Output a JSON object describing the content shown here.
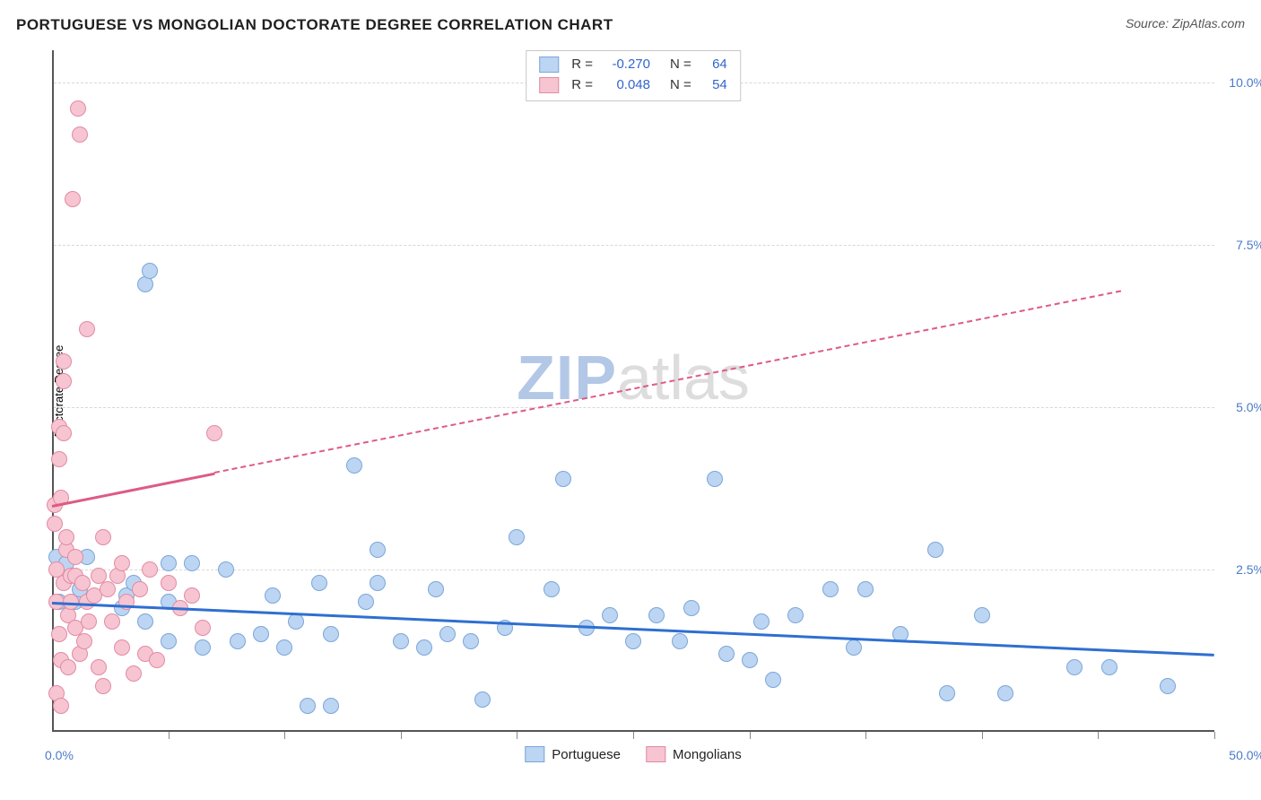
{
  "title": "PORTUGUESE VS MONGOLIAN DOCTORATE DEGREE CORRELATION CHART",
  "source": "Source: ZipAtlas.com",
  "y_axis_label": "Doctorate Degree",
  "watermark": {
    "left": "ZIP",
    "right": "atlas"
  },
  "chart": {
    "type": "scatter",
    "xlim": [
      0,
      50
    ],
    "ylim": [
      0,
      10.5
    ],
    "x_origin_label": "0.0%",
    "x_end_label": "50.0%",
    "x_ticks": [
      5,
      10,
      15,
      20,
      25,
      30,
      35,
      40,
      45,
      50
    ],
    "y_ticks": [
      {
        "v": 2.5,
        "label": "2.5%"
      },
      {
        "v": 5.0,
        "label": "5.0%"
      },
      {
        "v": 7.5,
        "label": "7.5%"
      },
      {
        "v": 10.0,
        "label": "10.0%"
      }
    ],
    "grid_color": "#d8d8d8",
    "background_color": "#ffffff",
    "point_radius": 9,
    "series": [
      {
        "name": "Portuguese",
        "fill": "#bcd5f2",
        "stroke": "#7ba6d8",
        "trend_color": "#2e6fd1",
        "R": "-0.270",
        "N": "64",
        "trend": {
          "x0": 0,
          "y0": 2.0,
          "x1": 50,
          "y1": 1.2,
          "solid_until_x": 50
        },
        "points": [
          [
            0.2,
            2.7
          ],
          [
            0.3,
            2.0
          ],
          [
            0.6,
            2.6
          ],
          [
            1.0,
            2.0
          ],
          [
            1.2,
            2.2
          ],
          [
            1.5,
            2.7
          ],
          [
            3.0,
            1.9
          ],
          [
            3.2,
            2.1
          ],
          [
            3.5,
            2.3
          ],
          [
            4.0,
            1.7
          ],
          [
            4.0,
            6.9
          ],
          [
            4.2,
            7.1
          ],
          [
            5.0,
            2.6
          ],
          [
            5.0,
            1.4
          ],
          [
            5.0,
            2.0
          ],
          [
            6.0,
            2.6
          ],
          [
            6.5,
            1.3
          ],
          [
            7.5,
            2.5
          ],
          [
            8.0,
            1.4
          ],
          [
            9.0,
            1.5
          ],
          [
            9.5,
            2.1
          ],
          [
            10.0,
            1.3
          ],
          [
            10.5,
            1.7
          ],
          [
            11.0,
            0.4
          ],
          [
            11.5,
            2.3
          ],
          [
            12.0,
            1.5
          ],
          [
            12.0,
            0.4
          ],
          [
            13.0,
            4.1
          ],
          [
            13.5,
            2.0
          ],
          [
            14.0,
            2.3
          ],
          [
            14.0,
            2.8
          ],
          [
            15.0,
            1.4
          ],
          [
            16.0,
            1.3
          ],
          [
            16.5,
            2.2
          ],
          [
            17.0,
            1.5
          ],
          [
            18.0,
            1.4
          ],
          [
            18.5,
            0.5
          ],
          [
            19.5,
            1.6
          ],
          [
            20.0,
            3.0
          ],
          [
            21.5,
            2.2
          ],
          [
            22.0,
            3.9
          ],
          [
            23.0,
            1.6
          ],
          [
            24.0,
            1.8
          ],
          [
            25.0,
            1.4
          ],
          [
            26.0,
            1.8
          ],
          [
            27.0,
            1.4
          ],
          [
            27.5,
            1.9
          ],
          [
            28.5,
            3.9
          ],
          [
            29.0,
            1.2
          ],
          [
            30.0,
            1.1
          ],
          [
            30.5,
            1.7
          ],
          [
            31.0,
            0.8
          ],
          [
            32.0,
            1.8
          ],
          [
            33.5,
            2.2
          ],
          [
            34.5,
            1.3
          ],
          [
            35.0,
            2.2
          ],
          [
            36.5,
            1.5
          ],
          [
            38.0,
            2.8
          ],
          [
            38.5,
            0.6
          ],
          [
            40.0,
            1.8
          ],
          [
            41.0,
            0.6
          ],
          [
            44.0,
            1.0
          ],
          [
            45.5,
            1.0
          ],
          [
            48.0,
            0.7
          ]
        ]
      },
      {
        "name": "Mongolians",
        "fill": "#f6c5d1",
        "stroke": "#e38aa4",
        "trend_color": "#dd5b84",
        "R": "0.048",
        "N": "54",
        "trend": {
          "x0": 0,
          "y0": 3.5,
          "x1": 46,
          "y1": 6.8,
          "solid_until_x": 7
        },
        "points": [
          [
            0.1,
            3.2
          ],
          [
            0.1,
            3.5
          ],
          [
            0.2,
            2.5
          ],
          [
            0.2,
            2.0
          ],
          [
            0.2,
            0.6
          ],
          [
            0.3,
            1.5
          ],
          [
            0.3,
            4.2
          ],
          [
            0.3,
            4.7
          ],
          [
            0.4,
            1.1
          ],
          [
            0.4,
            0.4
          ],
          [
            0.4,
            3.6
          ],
          [
            0.5,
            2.3
          ],
          [
            0.5,
            4.6
          ],
          [
            0.5,
            5.4
          ],
          [
            0.5,
            5.7
          ],
          [
            0.6,
            2.8
          ],
          [
            0.6,
            3.0
          ],
          [
            0.7,
            1.8
          ],
          [
            0.7,
            1.0
          ],
          [
            0.8,
            2.4
          ],
          [
            0.8,
            2.0
          ],
          [
            0.9,
            8.2
          ],
          [
            1.0,
            1.6
          ],
          [
            1.0,
            2.4
          ],
          [
            1.0,
            2.7
          ],
          [
            1.1,
            9.6
          ],
          [
            1.2,
            9.2
          ],
          [
            1.2,
            1.2
          ],
          [
            1.3,
            2.3
          ],
          [
            1.4,
            1.4
          ],
          [
            1.5,
            6.2
          ],
          [
            1.5,
            2.0
          ],
          [
            1.6,
            1.7
          ],
          [
            1.8,
            2.1
          ],
          [
            2.0,
            2.4
          ],
          [
            2.0,
            1.0
          ],
          [
            2.2,
            3.0
          ],
          [
            2.2,
            0.7
          ],
          [
            2.4,
            2.2
          ],
          [
            2.6,
            1.7
          ],
          [
            2.8,
            2.4
          ],
          [
            3.0,
            1.3
          ],
          [
            3.0,
            2.6
          ],
          [
            3.2,
            2.0
          ],
          [
            3.5,
            0.9
          ],
          [
            3.8,
            2.2
          ],
          [
            4.0,
            1.2
          ],
          [
            4.2,
            2.5
          ],
          [
            4.5,
            1.1
          ],
          [
            5.0,
            2.3
          ],
          [
            5.5,
            1.9
          ],
          [
            6.0,
            2.1
          ],
          [
            6.5,
            1.6
          ],
          [
            7.0,
            4.6
          ]
        ]
      }
    ]
  },
  "top_legend": [
    {
      "series": 0,
      "R_label": "R =",
      "N_label": "N ="
    },
    {
      "series": 1,
      "R_label": "R =",
      "N_label": "N ="
    }
  ],
  "bottom_legend": [
    {
      "series": 0
    },
    {
      "series": 1
    }
  ]
}
